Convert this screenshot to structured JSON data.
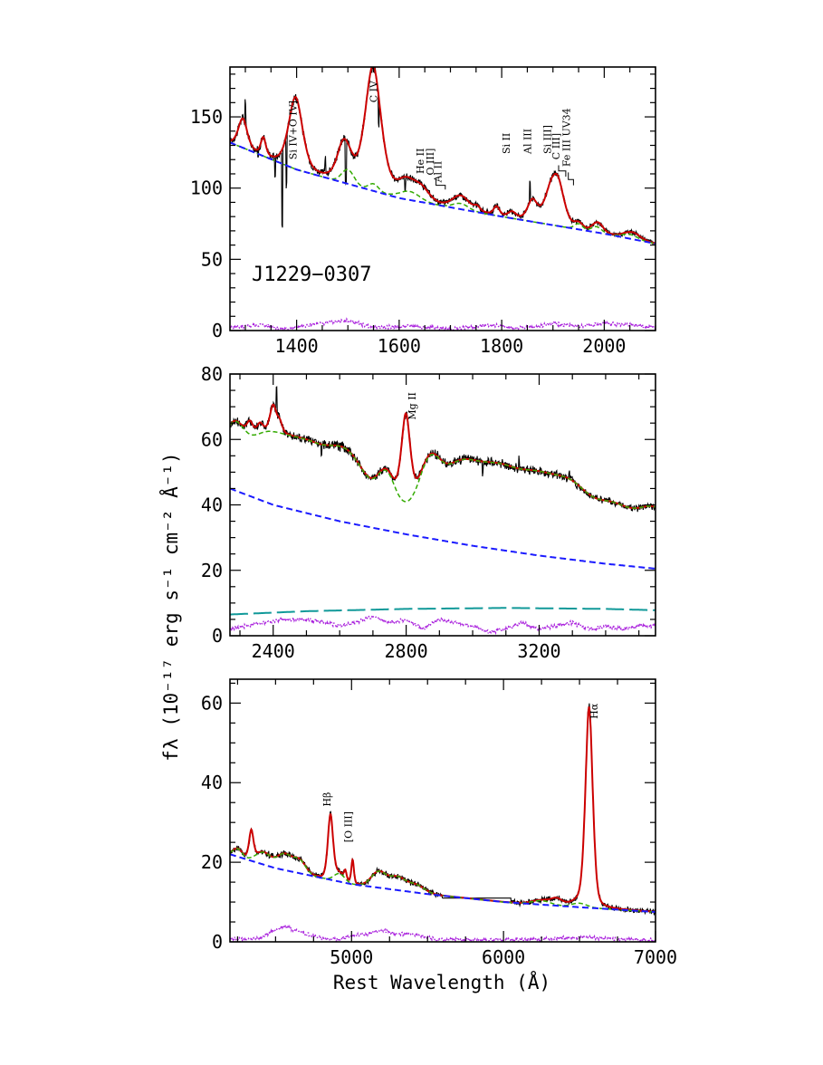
{
  "object_name": "J1229−0307",
  "x_axis_label": "Rest Wavelength (Å)",
  "y_axis_label": "fλ (10⁻¹⁷ erg s⁻¹ cm⁻² Å⁻¹)",
  "colors": {
    "observed": "#000000",
    "model": "#cc0000",
    "model_without_lines": "#33aa00",
    "power_law": "#1a1aff",
    "host": "#119999",
    "residual": "#aa22dd"
  },
  "chart_data": [
    {
      "type": "line",
      "panel": "UV",
      "xlim": [
        1270,
        2100
      ],
      "ylim": [
        0,
        185
      ],
      "x_ticks": [
        1400,
        1600,
        1800,
        2000
      ],
      "y_ticks": [
        0,
        50,
        100,
        150
      ],
      "x_tick_labels": [
        "1400",
        "1600",
        "1800",
        "2000"
      ],
      "y_tick_labels": [
        "0",
        "50",
        "100",
        "150"
      ],
      "power_law": {
        "x": [
          1270,
          1400,
          1600,
          1800,
          2000,
          2100
        ],
        "y": [
          132,
          113,
          93,
          80,
          68,
          61
        ]
      },
      "emission_lines": [
        {
          "center": 1295,
          "amp": 20,
          "sigma": 9
        },
        {
          "center": 1335,
          "amp": 12,
          "sigma": 5
        },
        {
          "center": 1398,
          "amp": 50,
          "sigma": 14
        },
        {
          "center": 1490,
          "amp": 20,
          "sigma": 13
        },
        {
          "center": 1549,
          "amp": 82,
          "sigma": 17
        },
        {
          "center": 1610,
          "amp": 7,
          "sigma": 18
        },
        {
          "center": 1645,
          "amp": 7,
          "sigma": 16
        },
        {
          "center": 1720,
          "amp": 5,
          "sigma": 18
        },
        {
          "center": 1752,
          "amp": 3,
          "sigma": 6
        },
        {
          "center": 1790,
          "amp": 6,
          "sigma": 6
        },
        {
          "center": 1820,
          "amp": 4,
          "sigma": 8
        },
        {
          "center": 1860,
          "amp": 14,
          "sigma": 10
        },
        {
          "center": 1895,
          "amp": 18,
          "sigma": 14
        },
        {
          "center": 1910,
          "amp": 25,
          "sigma": 13
        },
        {
          "center": 1990,
          "amp": 3,
          "sigma": 10
        },
        {
          "center": 2060,
          "amp": 2,
          "sigma": 15
        }
      ],
      "iron_bumps": [
        {
          "center": 1500,
          "amp": 10,
          "sigma": 12
        },
        {
          "center": 1550,
          "amp": 5,
          "sigma": 10
        },
        {
          "center": 1620,
          "amp": 6,
          "sigma": 20
        },
        {
          "center": 1720,
          "amp": 4,
          "sigma": 15
        },
        {
          "center": 1950,
          "amp": 4,
          "sigma": 8
        },
        {
          "center": 1985,
          "amp": 4,
          "sigma": 10
        },
        {
          "center": 2050,
          "amp": 3,
          "sigma": 15
        }
      ],
      "observed_spikes": [
        {
          "x": 1300,
          "dy": 16
        },
        {
          "x": 1325,
          "dy": -5
        },
        {
          "x": 1358,
          "dy": -14
        },
        {
          "x": 1372,
          "dy": -55
        },
        {
          "x": 1380,
          "dy": -35
        },
        {
          "x": 1456,
          "dy": 10
        },
        {
          "x": 1496,
          "dy": -30
        },
        {
          "x": 1560,
          "dy": -22
        },
        {
          "x": 1612,
          "dy": -8
        },
        {
          "x": 1855,
          "dy": 15
        }
      ],
      "residual": {
        "x": [
          1270,
          1330,
          1380,
          1430,
          1470,
          1500,
          1550,
          1620,
          1700,
          1780,
          1820,
          1860,
          1900,
          1950,
          2000,
          2050,
          2100
        ],
        "y": [
          2,
          4,
          1,
          4,
          6,
          7,
          2,
          3,
          1,
          4,
          2,
          2,
          5,
          3,
          5,
          4,
          2
        ]
      },
      "line_labels": [
        {
          "text": "Si IV+O IV]",
          "x": 1400,
          "y": 120
        },
        {
          "text": "C IV",
          "x": 1557,
          "y": 160
        },
        {
          "text": "He II",
          "x": 1648,
          "y": 110
        },
        {
          "text": "O III]",
          "x": 1667,
          "y": 109
        },
        {
          "text": "Al II",
          "x": 1682,
          "y": 104
        },
        {
          "text": "Si II",
          "x": 1816,
          "y": 124
        },
        {
          "text": "Al III",
          "x": 1857,
          "y": 124
        },
        {
          "text": "Si III]",
          "x": 1896,
          "y": 124
        },
        {
          "text": "C III]",
          "x": 1913,
          "y": 120
        },
        {
          "text": "Fe III UV34",
          "x": 1933,
          "y": 115
        }
      ]
    },
    {
      "type": "line",
      "panel": "MgII",
      "xlim": [
        2270,
        3550
      ],
      "ylim": [
        0,
        80
      ],
      "x_ticks": [
        2400,
        2800,
        3200
      ],
      "y_ticks": [
        0,
        20,
        40,
        60,
        80
      ],
      "x_tick_labels": [
        "2400",
        "2800",
        "3200"
      ],
      "y_tick_labels": [
        "0",
        "20",
        "40",
        "60",
        "80"
      ],
      "power_law": {
        "x": [
          2270,
          2400,
          2600,
          2800,
          3000,
          3200,
          3400,
          3550
        ],
        "y": [
          45,
          40,
          35,
          31,
          27.5,
          24.5,
          22,
          20.5
        ]
      },
      "host": {
        "x": [
          2270,
          2500,
          2800,
          3100,
          3400,
          3550
        ],
        "y": [
          6.5,
          7.5,
          8.2,
          8.5,
          8.2,
          7.8
        ]
      },
      "emission_lines": [
        {
          "center": 2799,
          "amp": 27,
          "sigma": 14
        },
        {
          "center": 2330,
          "amp": 4,
          "sigma": 10
        },
        {
          "center": 2360,
          "amp": 3,
          "sigma": 10
        },
        {
          "center": 2400,
          "amp": 8,
          "sigma": 10
        },
        {
          "center": 2420,
          "amp": 3,
          "sigma": 8
        }
      ],
      "iron_bumps": [
        {
          "center": 2280,
          "amp": 11,
          "sigma": 30
        },
        {
          "center": 2380,
          "amp": 13,
          "sigma": 60
        },
        {
          "center": 2500,
          "amp": 12,
          "sigma": 60
        },
        {
          "center": 2620,
          "amp": 13,
          "sigma": 55
        },
        {
          "center": 2740,
          "amp": 9,
          "sigma": 25
        },
        {
          "center": 2870,
          "amp": 12,
          "sigma": 30
        },
        {
          "center": 2960,
          "amp": 15,
          "sigma": 60
        },
        {
          "center": 3080,
          "amp": 14,
          "sigma": 60
        },
        {
          "center": 3200,
          "amp": 14,
          "sigma": 60
        },
        {
          "center": 3300,
          "amp": 11,
          "sigma": 50
        },
        {
          "center": 3420,
          "amp": 10,
          "sigma": 60
        },
        {
          "center": 3550,
          "amp": 10,
          "sigma": 50
        }
      ],
      "observed_spikes": [
        {
          "x": 2410,
          "dy": 7
        },
        {
          "x": 2545,
          "dy": -4
        },
        {
          "x": 3030,
          "dy": -4
        },
        {
          "x": 3140,
          "dy": 3
        },
        {
          "x": 3290,
          "dy": 2
        }
      ],
      "residual": {
        "x": [
          2270,
          2320,
          2370,
          2430,
          2500,
          2560,
          2600,
          2650,
          2700,
          2750,
          2800,
          2850,
          2900,
          2950,
          3000,
          3050,
          3100,
          3150,
          3200,
          3250,
          3300,
          3350,
          3400,
          3450,
          3500,
          3550
        ],
        "y": [
          2,
          3,
          4,
          5,
          5,
          4,
          3,
          4,
          6,
          4,
          5,
          2,
          5,
          4,
          3,
          1,
          2,
          4,
          2,
          3,
          4,
          2,
          3,
          2,
          3,
          3
        ]
      },
      "line_labels": [
        {
          "text": "Mg II",
          "x": 2828,
          "y": 66
        }
      ]
    },
    {
      "type": "line",
      "panel": "optical",
      "xlim": [
        4200,
        7000
      ],
      "ylim": [
        0,
        66
      ],
      "x_ticks": [
        5000,
        6000,
        7000
      ],
      "y_ticks": [
        0,
        20,
        40,
        60
      ],
      "x_tick_labels": [
        "5000",
        "6000",
        "7000"
      ],
      "y_tick_labels": [
        "0",
        "20",
        "40",
        "60"
      ],
      "power_law": {
        "x": [
          4200,
          4500,
          5000,
          5500,
          6000,
          6500,
          7000
        ],
        "y": [
          22,
          18.5,
          14.5,
          12,
          10,
          8.7,
          7.5
        ]
      },
      "emission_lines": [
        {
          "center": 4340,
          "amp": 7,
          "sigma": 15
        },
        {
          "center": 4861,
          "amp": 16,
          "sigma": 18
        },
        {
          "center": 4959,
          "amp": 2,
          "sigma": 8
        },
        {
          "center": 5007,
          "amp": 6,
          "sigma": 9
        },
        {
          "center": 6563,
          "amp": 50,
          "sigma": 25
        },
        {
          "center": 6350,
          "amp": 1.5,
          "sigma": 40
        }
      ],
      "iron_bumps": [
        {
          "center": 4250,
          "amp": 2,
          "sigma": 30
        },
        {
          "center": 4420,
          "amp": 3,
          "sigma": 50
        },
        {
          "center": 4560,
          "amp": 4,
          "sigma": 50
        },
        {
          "center": 4660,
          "amp": 3,
          "sigma": 40
        },
        {
          "center": 4920,
          "amp": 2,
          "sigma": 35
        },
        {
          "center": 5180,
          "amp": 4,
          "sigma": 50
        },
        {
          "center": 5300,
          "amp": 3,
          "sigma": 50
        },
        {
          "center": 5420,
          "amp": 2,
          "sigma": 60
        },
        {
          "center": 6250,
          "amp": 1,
          "sigma": 60
        },
        {
          "center": 6500,
          "amp": 1,
          "sigma": 50
        }
      ],
      "observed_spikes": [],
      "observed_gap": {
        "x": [
          5600,
          6050
        ],
        "y": 11
      },
      "residual": {
        "x": [
          4200,
          4300,
          4400,
          4500,
          4560,
          4620,
          4700,
          4800,
          4900,
          5000,
          5100,
          5200,
          5300,
          5400,
          5500,
          5600,
          5800,
          6000,
          6200,
          6400,
          6600,
          6800,
          7000
        ],
        "y": [
          1,
          0.5,
          1,
          3,
          4,
          3,
          2,
          1,
          0.5,
          1.5,
          2,
          3,
          2,
          2,
          1,
          0.5,
          0.5,
          0.5,
          0.5,
          1,
          1,
          0.5,
          0.5
        ]
      },
      "line_labels": [
        {
          "text": "Hβ",
          "x": 4861,
          "y": 34
        },
        {
          "text": "[O III]",
          "x": 5000,
          "y": 25
        },
        {
          "text": "Hα",
          "x": 6620,
          "y": 56
        }
      ]
    }
  ]
}
